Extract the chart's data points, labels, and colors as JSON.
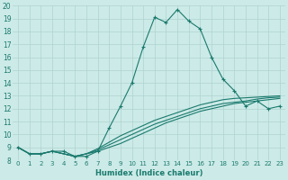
{
  "xlabel": "Humidex (Indice chaleur)",
  "xlim": [
    -0.5,
    23.5
  ],
  "ylim": [
    8,
    20
  ],
  "xticks": [
    0,
    1,
    2,
    3,
    4,
    5,
    6,
    7,
    8,
    9,
    10,
    11,
    12,
    13,
    14,
    15,
    16,
    17,
    18,
    19,
    20,
    21,
    22,
    23
  ],
  "yticks": [
    8,
    9,
    10,
    11,
    12,
    13,
    14,
    15,
    16,
    17,
    18,
    19,
    20
  ],
  "bg_color": "#cceae7",
  "grid_color": "#aed4d1",
  "line_color": "#1a7a6e",
  "lines": [
    {
      "x": [
        0,
        1,
        2,
        3,
        4,
        5,
        6,
        7,
        8,
        9,
        10,
        11,
        12,
        13,
        14,
        15,
        16,
        17,
        18,
        19,
        20,
        21,
        22,
        23
      ],
      "y": [
        9.0,
        8.5,
        8.5,
        8.7,
        8.7,
        8.3,
        8.3,
        8.7,
        10.5,
        12.2,
        14.0,
        16.8,
        19.1,
        18.7,
        19.7,
        18.8,
        18.2,
        16.0,
        14.3,
        13.4,
        12.2,
        12.6,
        12.0,
        12.2
      ],
      "marker": true
    },
    {
      "x": [
        0,
        1,
        2,
        3,
        4,
        5,
        6,
        7,
        8,
        9,
        10,
        11,
        12,
        13,
        14,
        15,
        16,
        17,
        18,
        19,
        20,
        21,
        22,
        23
      ],
      "y": [
        9.0,
        8.5,
        8.5,
        8.7,
        8.5,
        8.3,
        8.5,
        8.7,
        9.0,
        9.3,
        9.7,
        10.1,
        10.5,
        10.9,
        11.2,
        11.5,
        11.8,
        12.0,
        12.2,
        12.4,
        12.5,
        12.6,
        12.7,
        12.8
      ],
      "marker": false
    },
    {
      "x": [
        0,
        1,
        2,
        3,
        4,
        5,
        6,
        7,
        8,
        9,
        10,
        11,
        12,
        13,
        14,
        15,
        16,
        17,
        18,
        19,
        20,
        21,
        22,
        23
      ],
      "y": [
        9.0,
        8.5,
        8.5,
        8.7,
        8.5,
        8.3,
        8.5,
        8.8,
        9.2,
        9.6,
        10.0,
        10.4,
        10.8,
        11.1,
        11.4,
        11.7,
        12.0,
        12.2,
        12.4,
        12.5,
        12.6,
        12.75,
        12.85,
        12.9
      ],
      "marker": false
    },
    {
      "x": [
        0,
        1,
        2,
        3,
        4,
        5,
        6,
        7,
        8,
        9,
        10,
        11,
        12,
        13,
        14,
        15,
        16,
        17,
        18,
        19,
        20,
        21,
        22,
        23
      ],
      "y": [
        9.0,
        8.5,
        8.5,
        8.7,
        8.5,
        8.3,
        8.5,
        8.9,
        9.4,
        9.9,
        10.3,
        10.7,
        11.1,
        11.4,
        11.7,
        12.0,
        12.3,
        12.5,
        12.7,
        12.8,
        12.85,
        12.9,
        12.95,
        13.0
      ],
      "marker": false
    }
  ]
}
